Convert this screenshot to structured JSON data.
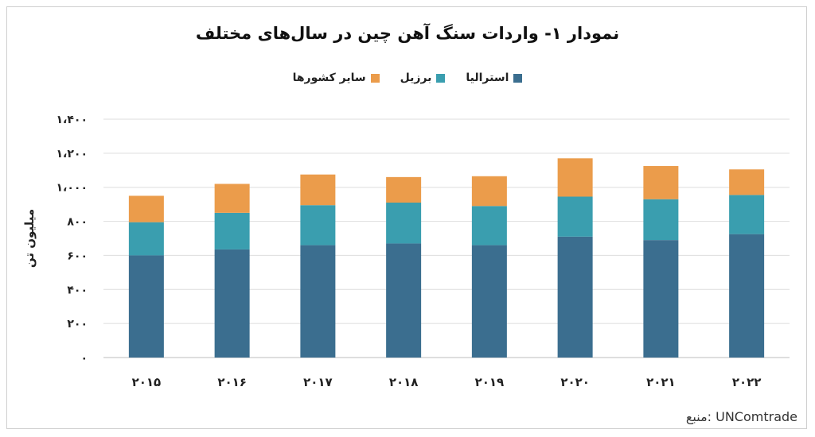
{
  "chart_data": {
    "type": "bar",
    "stacked": true,
    "title": "نمودار ۱- واردات سنگ آهن چین در سال‌های مختلف",
    "ylabel": "میلیون تن",
    "xlabel": "",
    "ylim": [
      0,
      1400
    ],
    "yticks": [
      0,
      200,
      400,
      600,
      800,
      1000,
      1200,
      1400
    ],
    "ytick_labels": [
      "۰",
      "۲۰۰",
      "۴۰۰",
      "۶۰۰",
      "۸۰۰",
      "۱،۰۰۰",
      "۱،۲۰۰",
      "۱،۴۰۰"
    ],
    "categories": [
      "۲۰۱۵",
      "۲۰۱۶",
      "۲۰۱۷",
      "۲۰۱۸",
      "۲۰۱۹",
      "۲۰۲۰",
      "۲۰۲۱",
      "۲۰۲۲"
    ],
    "grid": true,
    "legend_position": "top",
    "series": [
      {
        "name": "استرالیا",
        "color": "#3b6e8f",
        "values": [
          600,
          635,
          660,
          670,
          660,
          710,
          690,
          725
        ]
      },
      {
        "name": "برزیل",
        "color": "#3a9eaf",
        "values": [
          195,
          215,
          235,
          240,
          230,
          235,
          240,
          230
        ]
      },
      {
        "name": "سایر کشورها",
        "color": "#eb9c4b",
        "values": [
          155,
          170,
          180,
          150,
          175,
          225,
          195,
          150
        ]
      }
    ]
  },
  "source": {
    "text": "منبع: UNComtrade"
  }
}
